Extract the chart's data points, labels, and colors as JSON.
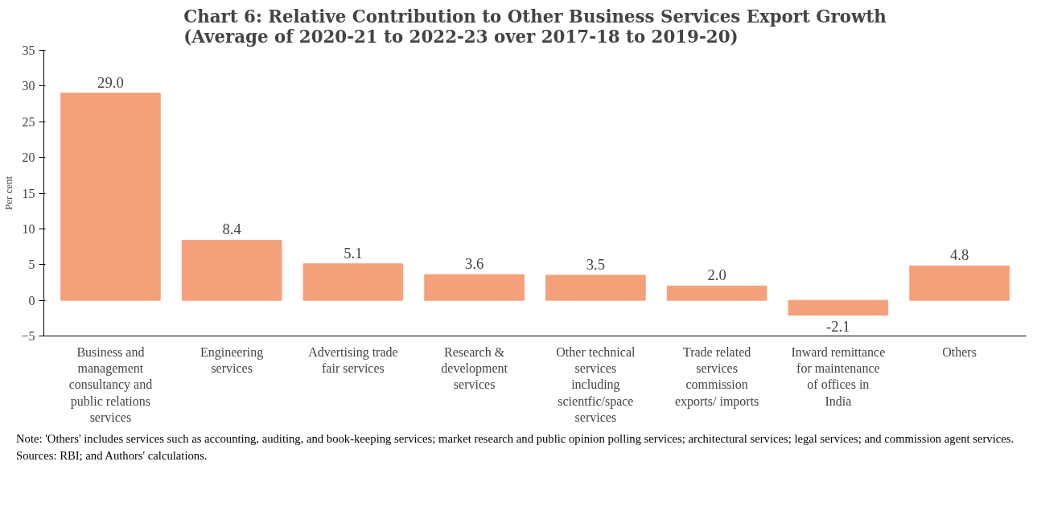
{
  "chart_data": {
    "type": "bar",
    "title": "Chart 6: Relative Contribution to Other Business Services Export Growth",
    "subtitle": "(Average of 2020-21 to 2022-23 over 2017-18 to 2019-20)",
    "ylabel": "Per cent",
    "categories": [
      "Business and management consultancy and public relations services",
      "Engineering services",
      "Advertising trade fair services",
      "Research & development services",
      "Other technical services including scientfic/space services",
      "Trade related services commission exports/ imports",
      "Inward remittance for maintenance of offices in India",
      "Others"
    ],
    "values": [
      29.0,
      8.4,
      5.1,
      3.6,
      3.5,
      2.0,
      -2.1,
      4.8
    ],
    "value_labels": [
      "29.0",
      "8.4",
      "5.1",
      "3.6",
      "3.5",
      "2.0",
      "-2.1",
      "4.8"
    ],
    "color": "#f4a07a",
    "ylim": [
      -5,
      35
    ],
    "yticks": [
      -5,
      0,
      5,
      10,
      15,
      20,
      25,
      30,
      35
    ],
    "grid": false,
    "annotations": [
      "Note: 'Others' includes services such as accounting, auditing, and book-keeping services; market research and public opinion polling services; architectural services; legal services; and commission agent services.",
      "Sources: RBI; and Authors' calculations."
    ]
  }
}
